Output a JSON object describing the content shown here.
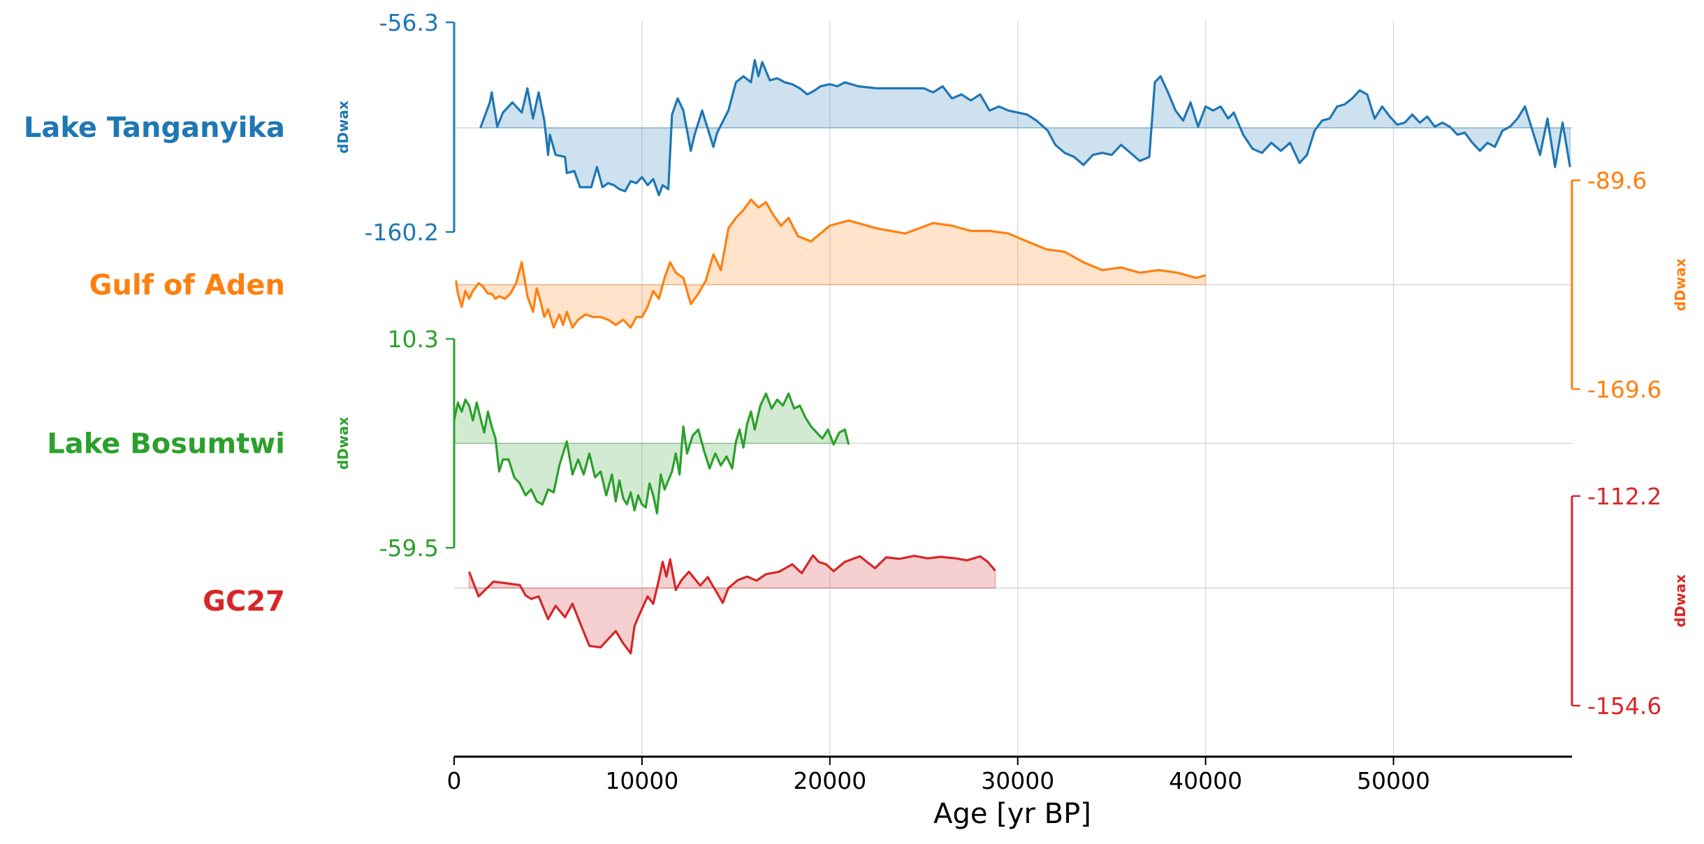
{
  "chart_data": {
    "type": "line",
    "title": "",
    "xlabel": "Age [yr BP]",
    "xlim": [
      0,
      59500
    ],
    "xticks": [
      0,
      10000,
      20000,
      30000,
      40000,
      50000
    ],
    "xtick_labels": [
      "0",
      "10000",
      "20000",
      "30000",
      "40000",
      "50000"
    ],
    "grid": "vertical",
    "series": [
      {
        "name": "Lake Tanganyika",
        "color": "#1f77b4",
        "ylabel": "dDwax",
        "yaxis_side": "left",
        "ylim": [
          -56.3,
          -160.2
        ],
        "ytick_labels": [
          "-56.3",
          "-160.2"
        ],
        "baseline": -108.6,
        "x": [
          1400,
          1900,
          2000,
          2300,
          2600,
          3100,
          3600,
          3900,
          4200,
          4500,
          4800,
          5000,
          5100,
          5400,
          5900,
          6000,
          6400,
          6700,
          7000,
          7300,
          7600,
          7900,
          8200,
          8500,
          8800,
          9100,
          9400,
          9700,
          10000,
          10300,
          10600,
          10900,
          11100,
          11400,
          11600,
          11900,
          12200,
          12600,
          12800,
          13200,
          13800,
          14000,
          14600,
          15000,
          15400,
          15800,
          16000,
          16200,
          16400,
          16800,
          17200,
          17600,
          18000,
          18400,
          18800,
          19200,
          19500,
          20000,
          20400,
          20800,
          21500,
          22500,
          23500,
          24500,
          25000,
          25500,
          26000,
          26500,
          27000,
          27500,
          28000,
          28500,
          29000,
          29500,
          30000,
          30500,
          31000,
          31600,
          32000,
          32500,
          33000,
          33500,
          34000,
          34500,
          35000,
          35500,
          36000,
          36500,
          37000,
          37300,
          37600,
          38000,
          38400,
          38800,
          39200,
          39600,
          40000,
          40400,
          40800,
          41200,
          41500,
          42000,
          42500,
          43000,
          43500,
          44000,
          44500,
          45000,
          45400,
          45800,
          46200,
          46600,
          47000,
          47400,
          47800,
          48200,
          48600,
          49000,
          49400,
          49800,
          50200,
          50600,
          51000,
          51400,
          51800,
          52200,
          52600,
          53000,
          53400,
          53800,
          54200,
          54600,
          55000,
          55400,
          55800,
          56200,
          56600,
          57000,
          57400,
          57800,
          58200,
          58600,
          59000,
          59400
        ],
        "values": [
          -108.6,
          -96,
          -91,
          -108,
          -101,
          -96,
          -101,
          -89,
          -104,
          -91,
          -105,
          -122,
          -112,
          -122,
          -123,
          -131,
          -130,
          -138,
          -138,
          -138,
          -128,
          -138,
          -136,
          -137,
          -139,
          -140,
          -135,
          -136,
          -133,
          -137,
          -134,
          -142,
          -137,
          -139,
          -102,
          -94,
          -100,
          -120,
          -112,
          -100,
          -118,
          -111,
          -100,
          -86,
          -83,
          -86,
          -75,
          -83,
          -76,
          -85,
          -84,
          -86,
          -87,
          -89,
          -92,
          -90,
          -88,
          -87,
          -88,
          -86,
          -88,
          -89,
          -89,
          -89,
          -89,
          -91,
          -88,
          -94,
          -92,
          -95,
          -92,
          -100,
          -98,
          -100,
          -101,
          -102,
          -105,
          -110,
          -117,
          -121,
          -123,
          -127,
          -122,
          -121,
          -122,
          -117,
          -121,
          -125,
          -123,
          -86,
          -83,
          -91,
          -100,
          -105,
          -96,
          -108,
          -98,
          -100,
          -98,
          -104,
          -101,
          -112,
          -119,
          -121,
          -116,
          -120,
          -116,
          -126,
          -122,
          -110,
          -105,
          -104,
          -98,
          -97,
          -94,
          -90,
          -92,
          -104,
          -98,
          -103,
          -107,
          -106,
          -102,
          -106,
          -103,
          -108,
          -106,
          -108,
          -112,
          -111,
          -116,
          -120,
          -116,
          -118,
          -110,
          -108,
          -104,
          -98,
          -110,
          -122,
          -104,
          -128,
          -106,
          -128
        ]
      },
      {
        "name": "Gulf of Aden",
        "color": "#ff7f0e",
        "ylabel": "dDwax",
        "yaxis_side": "right",
        "ylim": [
          -89.6,
          -169.6
        ],
        "ytick_labels": [
          "-89.6",
          "-169.6"
        ],
        "baseline": -129.6,
        "x": [
          100,
          200,
          400,
          600,
          800,
          1000,
          1300,
          1500,
          1800,
          2000,
          2200,
          2400,
          2700,
          3000,
          3300,
          3600,
          3900,
          4200,
          4400,
          4600,
          4800,
          5000,
          5300,
          5600,
          5800,
          6000,
          6300,
          6600,
          7000,
          7400,
          7800,
          8200,
          8600,
          9000,
          9400,
          9700,
          10000,
          10300,
          10600,
          10900,
          11200,
          11500,
          11800,
          12200,
          12600,
          13000,
          13400,
          13800,
          14200,
          14600,
          15000,
          15400,
          15800,
          16200,
          16600,
          17000,
          17400,
          17800,
          18300,
          19000,
          20000,
          21000,
          22500,
          24000,
          25500,
          26500,
          27500,
          28500,
          29500,
          30500,
          31500,
          32500,
          33500,
          34500,
          35500,
          36500,
          37500,
          38500,
          39500,
          40000
        ],
        "values": [
          -128,
          -133,
          -138,
          -132,
          -135,
          -132,
          -129,
          -130,
          -133,
          -133,
          -135,
          -134,
          -135,
          -133,
          -129,
          -121,
          -134,
          -140,
          -131,
          -136,
          -142,
          -139,
          -146,
          -141,
          -145,
          -140,
          -146,
          -143,
          -141,
          -142,
          -142,
          -143,
          -145,
          -143,
          -146,
          -142,
          -142,
          -138,
          -132,
          -135,
          -127,
          -121,
          -125,
          -127,
          -137,
          -133,
          -128,
          -118,
          -124,
          -108,
          -104,
          -101,
          -97,
          -100,
          -98,
          -103,
          -107,
          -104,
          -111,
          -113,
          -107,
          -105,
          -108,
          -110,
          -106,
          -107,
          -109,
          -109,
          -110,
          -113,
          -116,
          -117,
          -121,
          -124,
          -123,
          -125,
          -124,
          -125,
          -127,
          -126
        ]
      },
      {
        "name": "Lake Bosumtwi",
        "color": "#2ca02c",
        "ylabel": "dDwax",
        "yaxis_side": "left",
        "ylim": [
          10.3,
          -59.5
        ],
        "ytick_labels": [
          "10.3",
          "-59.5"
        ],
        "baseline": -24.6,
        "x": [
          0,
          200,
          400,
          600,
          800,
          1000,
          1200,
          1400,
          1600,
          1800,
          2000,
          2200,
          2400,
          2600,
          2900,
          3200,
          3500,
          3800,
          4100,
          4400,
          4700,
          5000,
          5300,
          5600,
          6000,
          6300,
          6600,
          6900,
          7200,
          7500,
          7800,
          8100,
          8400,
          8600,
          8800,
          9000,
          9200,
          9400,
          9600,
          9800,
          10000,
          10200,
          10400,
          10600,
          10800,
          11000,
          11200,
          11400,
          11600,
          11800,
          12000,
          12200,
          12400,
          12700,
          13000,
          13300,
          13600,
          13900,
          14200,
          14500,
          14800,
          15000,
          15200,
          15400,
          15600,
          15800,
          16000,
          16300,
          16600,
          16900,
          17200,
          17500,
          17800,
          18100,
          18400,
          18700,
          19000,
          19300,
          19600,
          19900,
          20200,
          20500,
          20800,
          21000
        ],
        "values": [
          -17,
          -11,
          -14,
          -10,
          -12,
          -17,
          -11,
          -16,
          -21,
          -14,
          -19,
          -23,
          -34,
          -30,
          -30,
          -36,
          -38,
          -42,
          -40,
          -44,
          -45,
          -40,
          -41,
          -32,
          -24,
          -35,
          -30,
          -35,
          -28,
          -36,
          -34,
          -42,
          -35,
          -44,
          -37,
          -43,
          -45,
          -41,
          -47,
          -42,
          -45,
          -46,
          -38,
          -42,
          -48,
          -35,
          -40,
          -37,
          -34,
          -28,
          -35,
          -19,
          -28,
          -22,
          -20,
          -27,
          -33,
          -28,
          -32,
          -29,
          -33,
          -24,
          -20,
          -26,
          -18,
          -14,
          -20,
          -12,
          -8,
          -13,
          -10,
          -12,
          -8,
          -13,
          -12,
          -16,
          -19,
          -21,
          -23,
          -20,
          -25,
          -21,
          -20,
          -25
        ]
      },
      {
        "name": "GC27",
        "color": "#d62728",
        "ylabel": "dDwax",
        "yaxis_side": "right",
        "ylim": [
          -112.2,
          -154.6
        ],
        "ytick_labels": [
          "-112.2",
          "-154.6"
        ],
        "baseline": -130.8,
        "x": [
          800,
          1300,
          2100,
          2700,
          3500,
          3800,
          4100,
          4500,
          5000,
          5400,
          5900,
          6300,
          6800,
          7200,
          7800,
          8600,
          9000,
          9400,
          9600,
          9800,
          10300,
          10600,
          10900,
          11100,
          11300,
          11500,
          11800,
          12100,
          12500,
          13100,
          13500,
          13900,
          14300,
          14600,
          15100,
          15600,
          16100,
          16600,
          17300,
          18000,
          18500,
          19100,
          19400,
          19800,
          20200,
          20800,
          21600,
          22400,
          23000,
          23700,
          24500,
          25200,
          25900,
          26700,
          27300,
          28000,
          28400,
          28800
        ],
        "values": [
          -127.5,
          -132.5,
          -129.5,
          -129.8,
          -130.2,
          -132.3,
          -133,
          -132.5,
          -137.1,
          -134.4,
          -136.7,
          -134,
          -138.8,
          -142.5,
          -142.8,
          -139.5,
          -142,
          -144,
          -138.5,
          -136.7,
          -132.5,
          -134,
          -129.1,
          -125.5,
          -128.5,
          -125,
          -131.2,
          -129.2,
          -127.5,
          -130.3,
          -128.6,
          -131.2,
          -133.8,
          -130.8,
          -129.2,
          -128.5,
          -129.3,
          -128,
          -127.5,
          -126,
          -127.8,
          -124.2,
          -125.5,
          -126,
          -127.4,
          -125.5,
          -124.4,
          -126.8,
          -124.6,
          -124.9,
          -124.3,
          -124.8,
          -124.5,
          -124.8,
          -125.2,
          -124.4,
          -125.5,
          -127.3
        ]
      }
    ]
  }
}
